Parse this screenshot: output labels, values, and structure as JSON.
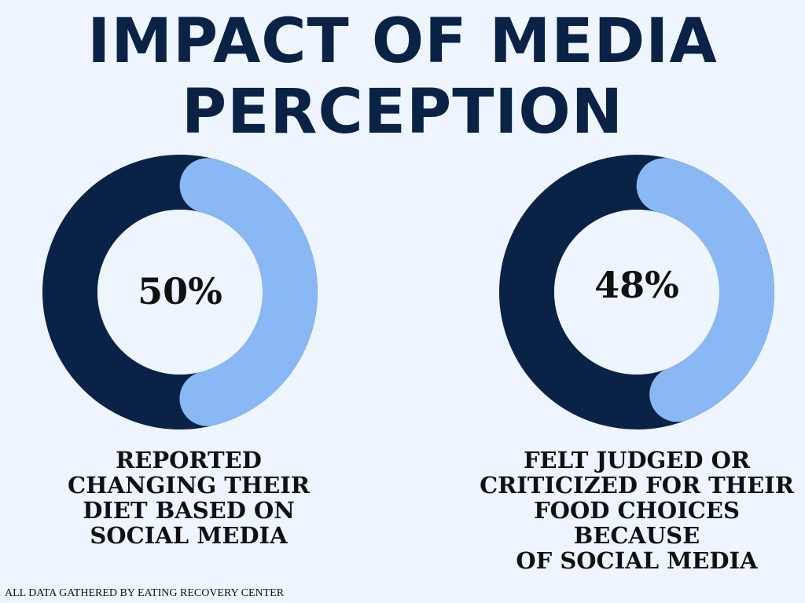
{
  "title_line1": "IMPACT OF MEDIA",
  "title_line2": "PERCEPTION",
  "colors": {
    "background": "#eef5ff",
    "dark": "#0b2247",
    "light": "#8ab8f5",
    "hole": "#eef5ff",
    "text": "#111111"
  },
  "chart_data": [
    {
      "type": "pie",
      "value_label": "50%",
      "values": [
        50,
        50
      ],
      "caption_lines": [
        "REPORTED",
        "CHANGING THEIR",
        "DIET BASED ON",
        "SOCIAL MEDIA"
      ]
    },
    {
      "type": "pie",
      "value_label": "48%",
      "values": [
        48,
        52
      ],
      "caption_lines": [
        "FELT JUDGED OR",
        "CRITICIZED FOR THEIR",
        "FOOD CHOICES BECAUSE",
        "OF SOCIAL MEDIA"
      ]
    }
  ],
  "footer": "ALL DATA GATHERED BY EATING RECOVERY CENTER"
}
